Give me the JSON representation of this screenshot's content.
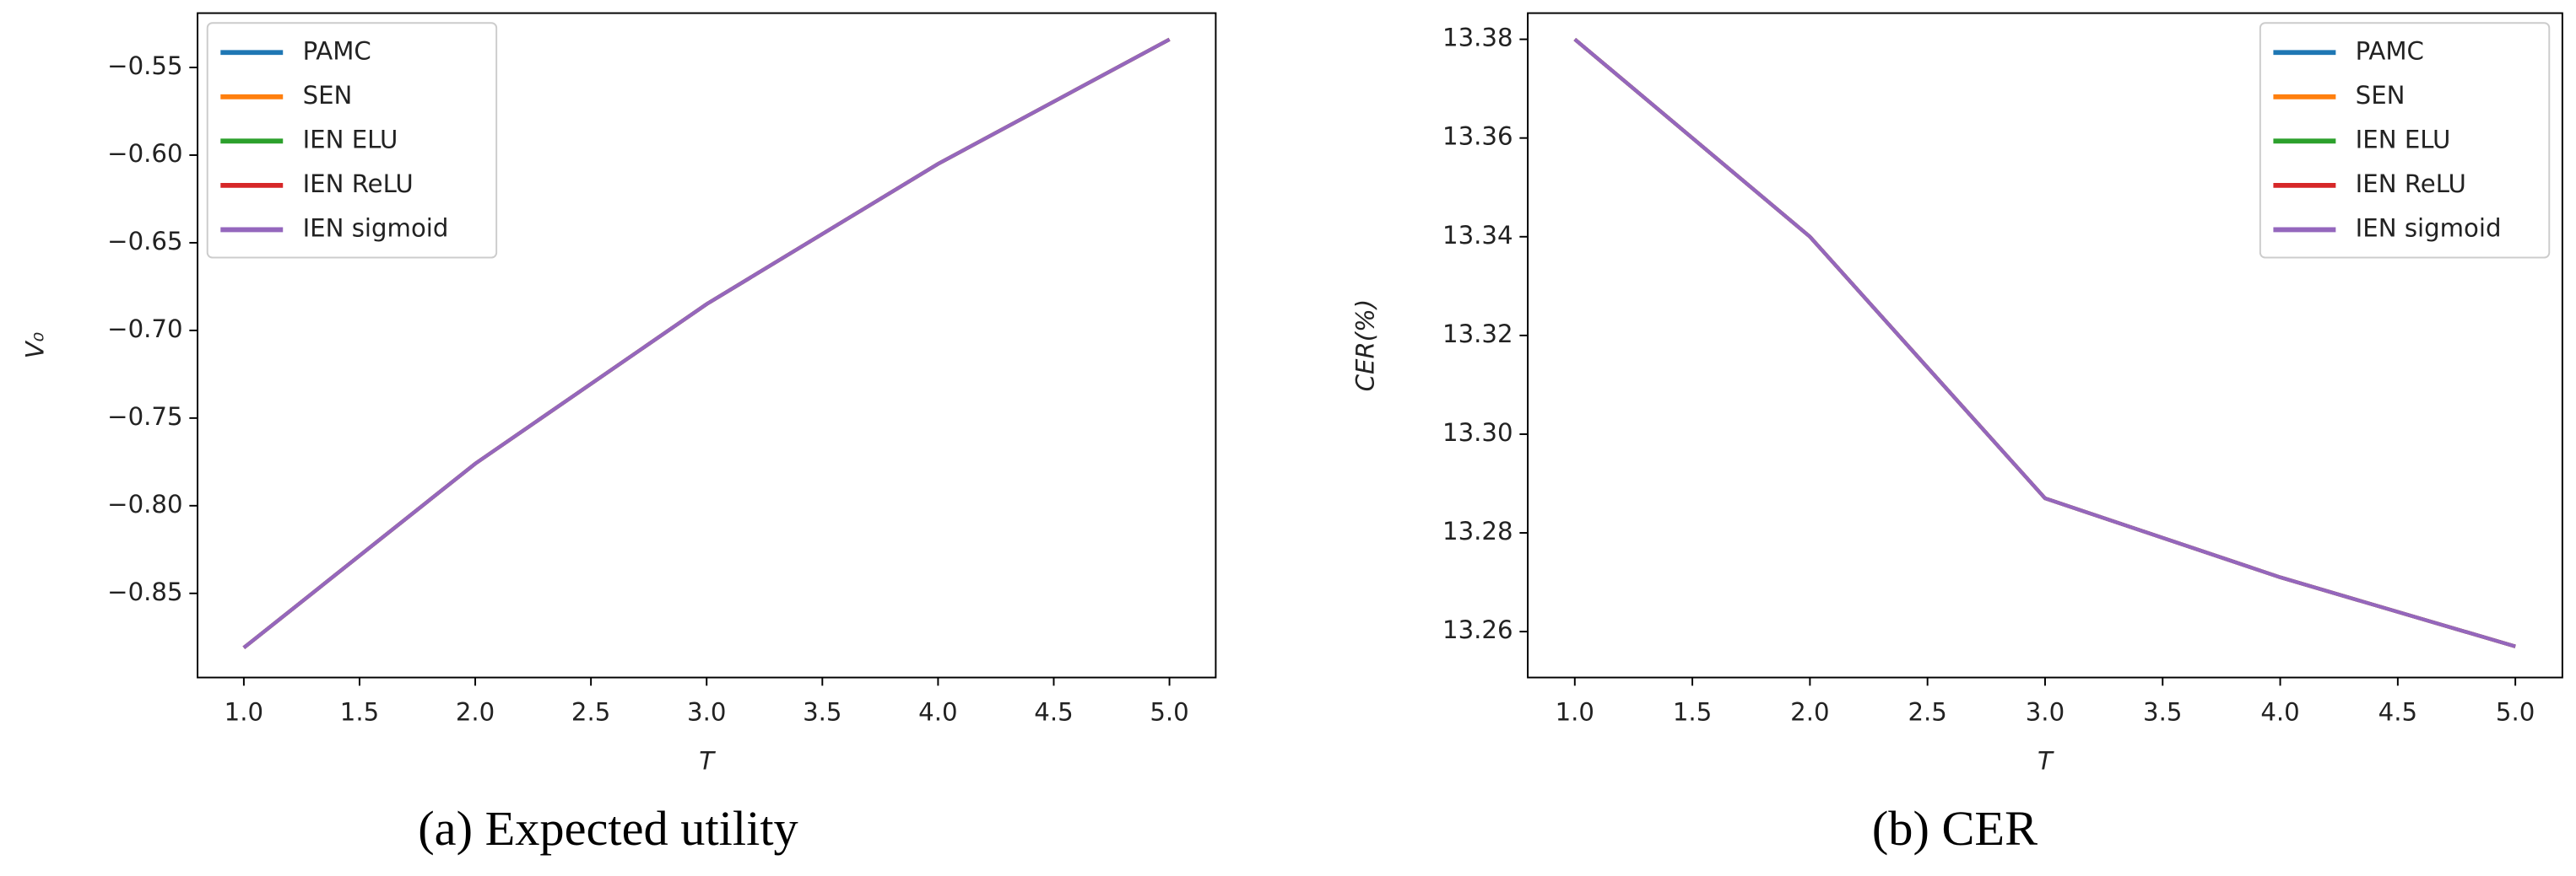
{
  "chart_data": [
    {
      "type": "line",
      "caption": "(a)  Expected utility",
      "xlabel": "T",
      "ylabel": "V₀",
      "x": [
        1,
        2,
        3,
        4,
        5
      ],
      "series": [
        {
          "name": "PAMC",
          "color": "#1f77b4",
          "values": [
            -0.881,
            -0.776,
            -0.685,
            -0.605,
            -0.534
          ]
        },
        {
          "name": "SEN",
          "color": "#ff7f0e",
          "values": [
            -0.881,
            -0.776,
            -0.685,
            -0.605,
            -0.534
          ]
        },
        {
          "name": "IEN ELU",
          "color": "#2ca02c",
          "values": [
            -0.881,
            -0.776,
            -0.685,
            -0.605,
            -0.534
          ]
        },
        {
          "name": "IEN ReLU",
          "color": "#d62728",
          "values": [
            -0.881,
            -0.776,
            -0.685,
            -0.605,
            -0.534
          ]
        },
        {
          "name": "IEN sigmoid",
          "color": "#9467bd",
          "values": [
            -0.881,
            -0.776,
            -0.685,
            -0.605,
            -0.534
          ]
        }
      ],
      "xlim": [
        0.8,
        5.2
      ],
      "xticks": [
        {
          "value": 1,
          "label": "1.0"
        },
        1.5,
        {
          "value": 2,
          "label": "2.0"
        },
        2.5,
        {
          "value": 3,
          "label": "3.0"
        },
        3.5,
        {
          "value": 4,
          "label": "4.0"
        },
        4.5,
        {
          "value": 5,
          "label": "5.0"
        }
      ],
      "ylim": [
        -0.898,
        -0.519
      ],
      "yticks": [
        {
          "value": -0.85,
          "label": "−0.85"
        },
        {
          "value": -0.8,
          "label": "−0.80"
        },
        {
          "value": -0.75,
          "label": "−0.75"
        },
        {
          "value": -0.7,
          "label": "−0.70"
        },
        {
          "value": -0.65,
          "label": "−0.65"
        },
        {
          "value": -0.6,
          "label": "−0.60"
        },
        {
          "value": -0.55,
          "label": "−0.55"
        }
      ],
      "legend": "upper-left",
      "grid": false
    },
    {
      "type": "line",
      "caption": "(b)  CER",
      "xlabel": "T",
      "ylabel": "CER(%)",
      "x": [
        1,
        2,
        3,
        4,
        5
      ],
      "series": [
        {
          "name": "PAMC",
          "color": "#1f77b4",
          "values": [
            13.38,
            13.34,
            13.287,
            13.271,
            13.257
          ]
        },
        {
          "name": "SEN",
          "color": "#ff7f0e",
          "values": [
            13.38,
            13.34,
            13.287,
            13.271,
            13.257
          ]
        },
        {
          "name": "IEN ELU",
          "color": "#2ca02c",
          "values": [
            13.38,
            13.34,
            13.287,
            13.271,
            13.257
          ]
        },
        {
          "name": "IEN ReLU",
          "color": "#d62728",
          "values": [
            13.38,
            13.34,
            13.287,
            13.271,
            13.257
          ]
        },
        {
          "name": "IEN sigmoid",
          "color": "#9467bd",
          "values": [
            13.38,
            13.34,
            13.287,
            13.271,
            13.257
          ]
        }
      ],
      "xlim": [
        0.8,
        5.2
      ],
      "xticks": [
        {
          "value": 1,
          "label": "1.0"
        },
        1.5,
        {
          "value": 2,
          "label": "2.0"
        },
        2.5,
        {
          "value": 3,
          "label": "3.0"
        },
        3.5,
        {
          "value": 4,
          "label": "4.0"
        },
        4.5,
        {
          "value": 5,
          "label": "5.0"
        }
      ],
      "ylim": [
        13.2507,
        13.3853
      ],
      "yticks": [
        13.26,
        13.28,
        {
          "value": 13.3,
          "label": "13.30"
        },
        13.32,
        13.34,
        13.36,
        13.38
      ],
      "legend": "upper-right",
      "grid": false
    }
  ]
}
